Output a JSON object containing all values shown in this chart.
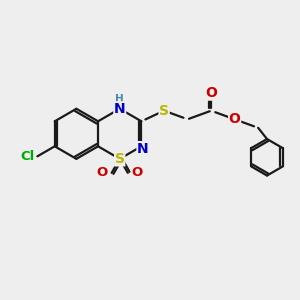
{
  "bg_color": "#eeeeee",
  "bond_color": "#1a1a1a",
  "bond_lw": 1.6,
  "atom_colors": {
    "S": "#b8b800",
    "N": "#0000cc",
    "O": "#cc0000",
    "Cl": "#00aa00",
    "C": "#1a1a1a",
    "H": "#4488aa"
  },
  "fig_size": [
    3.0,
    3.0
  ],
  "dpi": 100,
  "xlim": [
    0,
    10
  ],
  "ylim": [
    0,
    10
  ]
}
